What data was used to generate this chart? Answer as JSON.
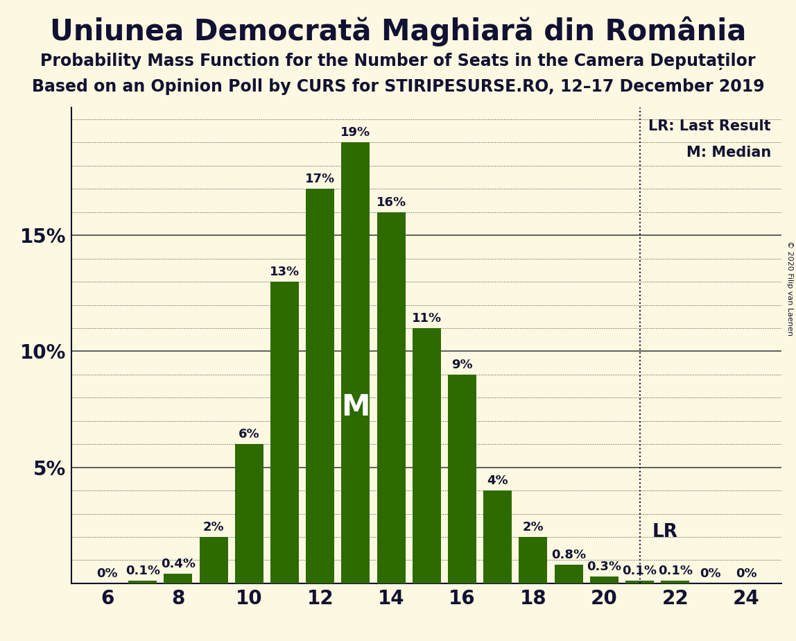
{
  "title": "Uniunea Democrată Maghiară din România",
  "subtitle1": "Probability Mass Function for the Number of Seats in the Camera Deputaților",
  "subtitle2": "Based on an Opinion Poll by CURS for STIRIPESURSE.RO, 12–17 December 2019",
  "copyright": "© 2020 Filip van Laenen",
  "background_color": "#fdf8e1",
  "bar_color": "#2d6a00",
  "seats": [
    6,
    7,
    8,
    9,
    10,
    11,
    12,
    13,
    14,
    15,
    16,
    17,
    18,
    19,
    20,
    21,
    22,
    23,
    24
  ],
  "probabilities": [
    0.0,
    0.1,
    0.4,
    2.0,
    6.0,
    13.0,
    17.0,
    19.0,
    16.0,
    11.0,
    9.0,
    4.0,
    2.0,
    0.8,
    0.3,
    0.1,
    0.1,
    0.0,
    0.0
  ],
  "labels": [
    "0%",
    "0.1%",
    "0.4%",
    "2%",
    "6%",
    "13%",
    "17%",
    "19%",
    "16%",
    "11%",
    "9%",
    "4%",
    "2%",
    "0.8%",
    "0.3%",
    "0.1%",
    "0.1%",
    "0%",
    "0%"
  ],
  "median_seat": 13,
  "lr_seat": 21,
  "xlim": [
    5.0,
    25.0
  ],
  "ylim": [
    0,
    20.5
  ],
  "yticks": [
    5,
    10,
    15
  ],
  "ytick_labels": [
    "5%",
    "10%",
    "15%"
  ],
  "xticks": [
    6,
    8,
    10,
    12,
    14,
    16,
    18,
    20,
    22,
    24
  ],
  "grid_color": "#444444",
  "title_fontsize": 30,
  "subtitle_fontsize": 17,
  "axis_fontsize": 20,
  "label_fontsize": 13,
  "bar_width": 0.8
}
